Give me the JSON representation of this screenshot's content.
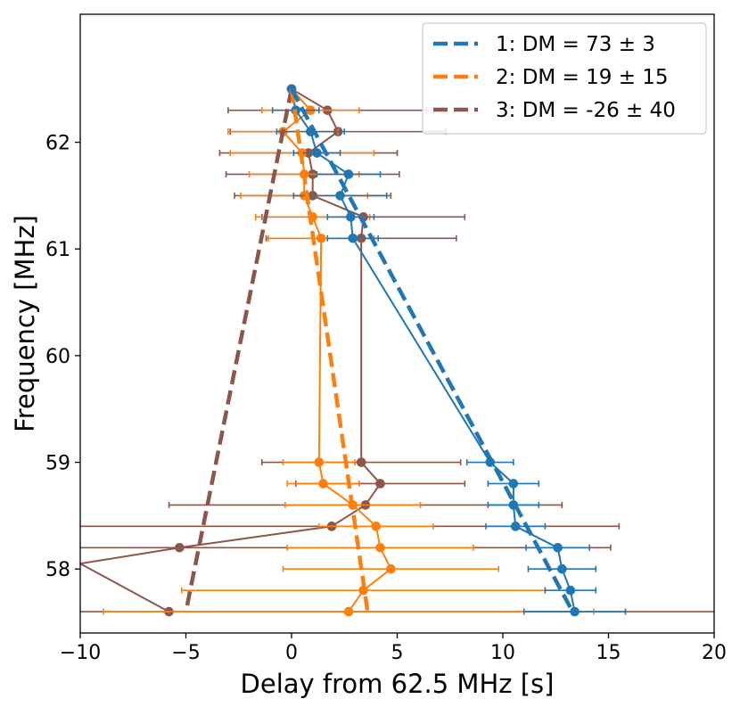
{
  "chart_data": {
    "type": "scatter",
    "xlabel": "Delay from 62.5 MHz [s]",
    "ylabel": "Frequency [MHz]",
    "xlim": [
      -10,
      20
    ],
    "ylim": [
      57.4,
      63.2
    ],
    "xticks": [
      -10,
      -5,
      0,
      5,
      10,
      15,
      20
    ],
    "xtick_labels": [
      "−10",
      "−5",
      "0",
      "5",
      "10",
      "15",
      "20"
    ],
    "yticks": [
      58,
      59,
      60,
      61,
      62
    ],
    "ytick_labels": [
      "58",
      "59",
      "60",
      "61",
      "62"
    ],
    "grid": false,
    "legend_position": "top-right",
    "series": [
      {
        "name": "1: DM = 73 ± 3",
        "color": "#1f77b4",
        "fit_line": [
          [
            0.0,
            62.5
          ],
          [
            13.3,
            57.6
          ]
        ],
        "points": [
          {
            "x": 0.0,
            "y": 62.5,
            "err": 0.0
          },
          {
            "x": 0.2,
            "y": 62.3,
            "err": 1.1
          },
          {
            "x": 0.9,
            "y": 62.1,
            "err": 1.6
          },
          {
            "x": 1.2,
            "y": 61.9,
            "err": 1.1
          },
          {
            "x": 2.7,
            "y": 61.7,
            "err": 1.5
          },
          {
            "x": 2.3,
            "y": 61.5,
            "err": 2.2
          },
          {
            "x": 2.8,
            "y": 61.3,
            "err": 1.1
          },
          {
            "x": 2.9,
            "y": 61.1,
            "err": 1.2
          },
          {
            "x": 9.4,
            "y": 59.0,
            "err": 1.1
          },
          {
            "x": 10.5,
            "y": 58.8,
            "err": 1.2
          },
          {
            "x": 10.5,
            "y": 58.6,
            "err": 1.2
          },
          {
            "x": 10.6,
            "y": 58.4,
            "err": 1.4
          },
          {
            "x": 12.6,
            "y": 58.2,
            "err": 1.5
          },
          {
            "x": 12.8,
            "y": 58.0,
            "err": 1.6
          },
          {
            "x": 13.2,
            "y": 57.8,
            "err": 1.2
          },
          {
            "x": 13.4,
            "y": 57.6,
            "err": 2.4
          }
        ]
      },
      {
        "name": "2: DM = 19 ± 15",
        "color": "#ff7f0e",
        "fit_line": [
          [
            0.0,
            62.5
          ],
          [
            3.6,
            57.6
          ]
        ],
        "points": [
          {
            "x": 0.0,
            "y": 62.5,
            "err": 0.0
          },
          {
            "x": 0.9,
            "y": 62.3,
            "err": 2.3
          },
          {
            "x": -0.4,
            "y": 62.1,
            "err": 2.6
          },
          {
            "x": 0.5,
            "y": 61.9,
            "err": 3.4
          },
          {
            "x": 0.6,
            "y": 61.7,
            "err": 2.6
          },
          {
            "x": 0.6,
            "y": 61.5,
            "err": 3.0
          },
          {
            "x": 1.0,
            "y": 61.3,
            "err": 2.7
          },
          {
            "x": 1.4,
            "y": 61.1,
            "err": 2.5
          },
          {
            "x": 1.3,
            "y": 59.0,
            "err": 1.7
          },
          {
            "x": 1.5,
            "y": 58.8,
            "err": 1.7
          },
          {
            "x": 2.9,
            "y": 58.6,
            "err": 3.2
          },
          {
            "x": 4.0,
            "y": 58.4,
            "err": 2.7
          },
          {
            "x": 4.2,
            "y": 58.2,
            "err": 4.4
          },
          {
            "x": 4.7,
            "y": 58.0,
            "err": 5.1
          },
          {
            "x": 3.4,
            "y": 57.8,
            "err": 8.6
          },
          {
            "x": 2.7,
            "y": 57.6,
            "err": 11.6
          }
        ]
      },
      {
        "name": "3: DM = -26 ± 40",
        "color": "#8c564b",
        "fit_line": [
          [
            0.0,
            62.5
          ],
          [
            -5.0,
            57.6
          ]
        ],
        "points": [
          {
            "x": 0.0,
            "y": 62.5,
            "err": 0.0
          },
          {
            "x": 1.7,
            "y": 62.3,
            "err": 4.7
          },
          {
            "x": 2.2,
            "y": 62.1,
            "err": 5.1
          },
          {
            "x": 0.8,
            "y": 61.9,
            "err": 4.2
          },
          {
            "x": 1.0,
            "y": 61.7,
            "err": 4.1
          },
          {
            "x": 1.0,
            "y": 61.5,
            "err": 3.7
          },
          {
            "x": 3.4,
            "y": 61.3,
            "err": 4.8
          },
          {
            "x": 3.3,
            "y": 61.1,
            "err": 4.5
          },
          {
            "x": 3.3,
            "y": 59.0,
            "err": 4.7
          },
          {
            "x": 4.2,
            "y": 58.8,
            "err": 4.0
          },
          {
            "x": 3.5,
            "y": 58.6,
            "err": 9.3
          },
          {
            "x": 1.9,
            "y": 58.4,
            "err": 13.6
          },
          {
            "x": -5.3,
            "y": 58.2,
            "err": 20.4
          },
          {
            "x": -10.0,
            "y": 58.05,
            "err": 0.0
          },
          {
            "x": -5.8,
            "y": 57.6,
            "err": 30.0
          }
        ]
      }
    ]
  }
}
